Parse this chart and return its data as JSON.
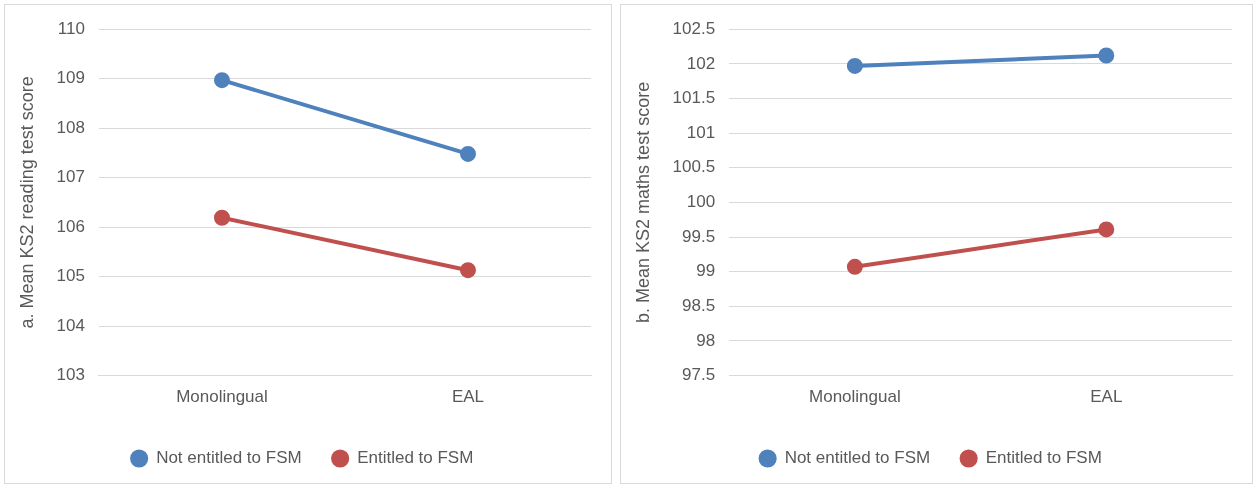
{
  "chart_data": [
    {
      "type": "line",
      "ylabel": "a. Mean KS2 reading test score",
      "categories": [
        "Monolingual",
        "EAL"
      ],
      "series": [
        {
          "name": "Not entitled to FSM",
          "color": "#4f81bd",
          "values": [
            108.97,
            107.48
          ]
        },
        {
          "name": "Entitled to FSM",
          "color": "#c0504d",
          "values": [
            106.19,
            105.13
          ]
        }
      ],
      "ylim": [
        103,
        110
      ],
      "yticks": [
        103,
        104,
        105,
        106,
        107,
        108,
        109,
        110
      ],
      "grid": "y",
      "legend": "bottom",
      "marker": "circle",
      "line_style": "solid"
    },
    {
      "type": "line",
      "ylabel": "b. Mean KS2 maths test score",
      "categories": [
        "Monolingual",
        "EAL"
      ],
      "series": [
        {
          "name": "Not entitled to FSM",
          "color": "#4f81bd",
          "values": [
            101.97,
            102.12
          ]
        },
        {
          "name": "Entitled to FSM",
          "color": "#c0504d",
          "values": [
            99.07,
            99.61
          ]
        }
      ],
      "ylim": [
        97.5,
        102.5
      ],
      "yticks": [
        97.5,
        98,
        98.5,
        99,
        99.5,
        100,
        100.5,
        101,
        101.5,
        102,
        102.5
      ],
      "grid": "y",
      "legend": "bottom",
      "marker": "circle",
      "line_style": "solid"
    }
  ]
}
